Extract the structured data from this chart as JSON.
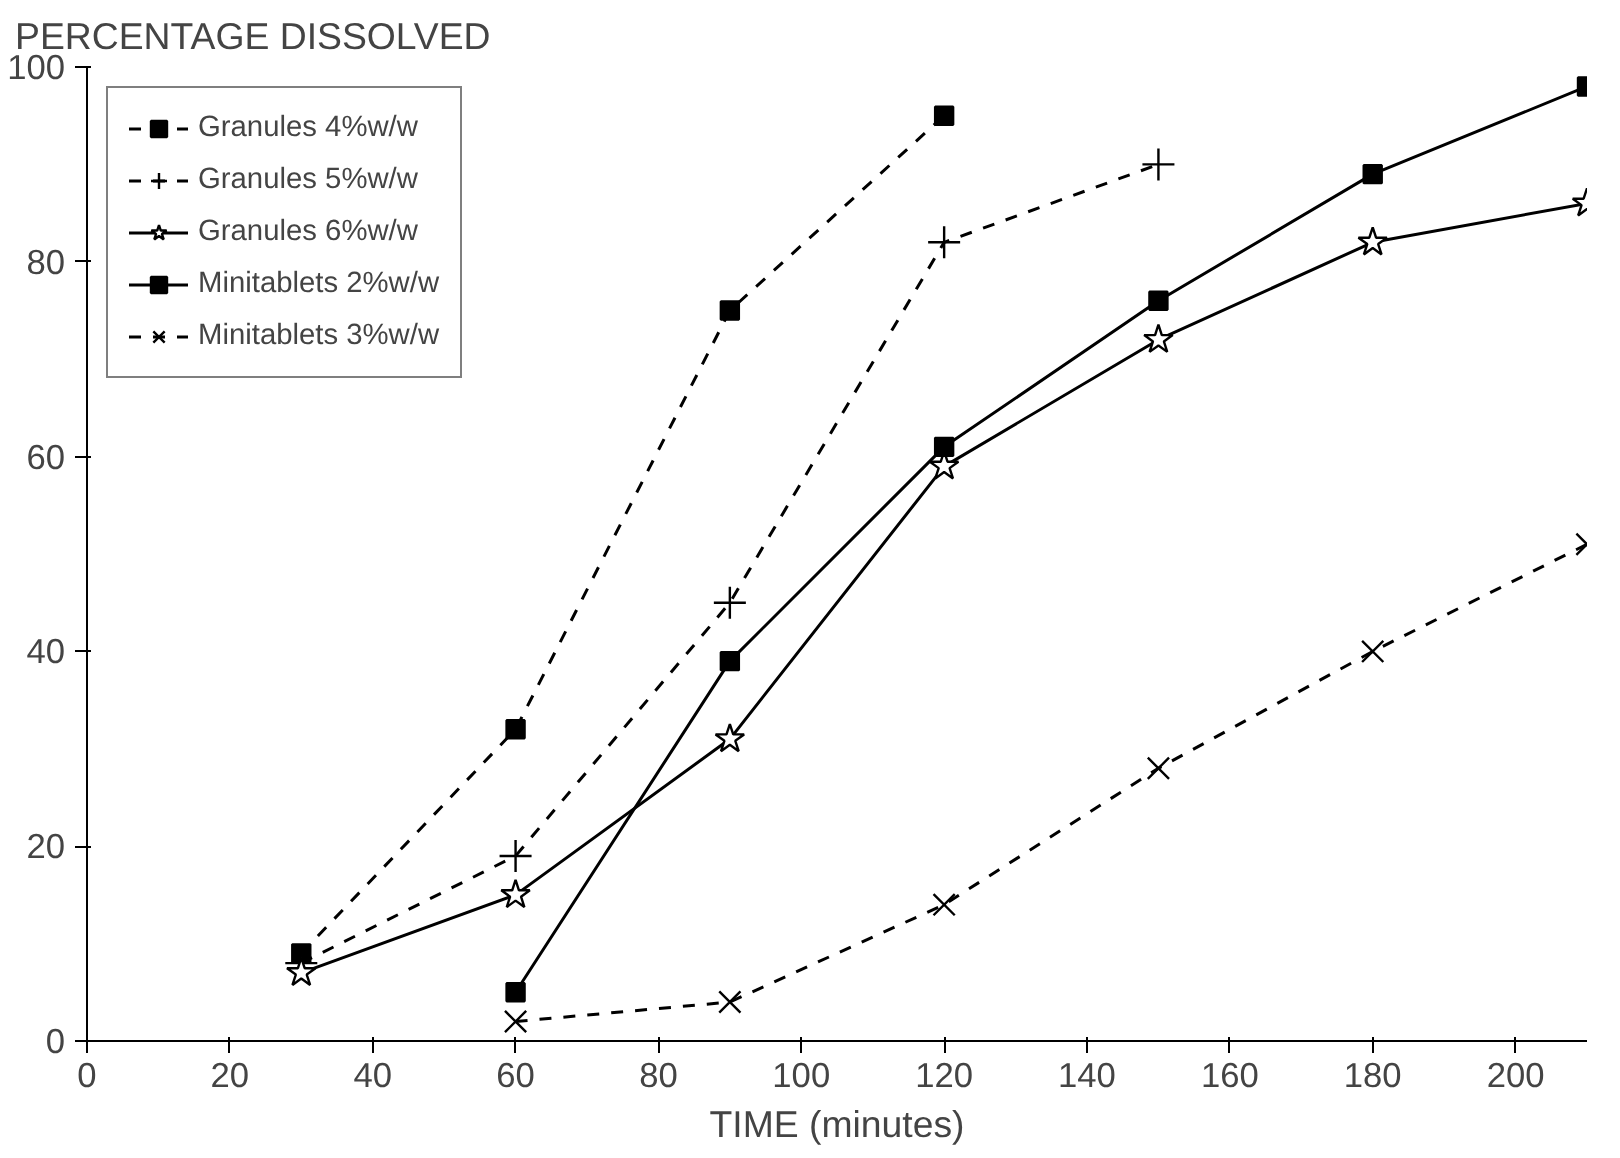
{
  "chart_data": {
    "type": "line",
    "ylabel": "PERCENTAGE DISSOLVED",
    "xlabel": "TIME (minutes)",
    "xlim": [
      0,
      210
    ],
    "xticks": [
      0,
      20,
      40,
      60,
      80,
      100,
      120,
      140,
      160,
      180,
      200
    ],
    "ylim": [
      0,
      100
    ],
    "yticks": [
      0,
      20,
      40,
      60,
      80,
      100
    ],
    "grid": false,
    "legend": "top left",
    "series": [
      {
        "name": "Granules 4%w/w",
        "color": "#000000",
        "line_style": "dashed",
        "marker": "square",
        "x": [
          30,
          60,
          90,
          120
        ],
        "values": [
          9,
          32,
          75,
          95
        ]
      },
      {
        "name": "Granules 5%w/w",
        "color": "#000000",
        "line_style": "dashed",
        "marker": "cross",
        "x": [
          30,
          60,
          90,
          120,
          150
        ],
        "values": [
          8,
          19,
          45,
          82,
          90
        ]
      },
      {
        "name": "Granules 6%w/w",
        "color": "#000000",
        "line_style": "solid",
        "marker": "star",
        "x": [
          30,
          60,
          90,
          120,
          150,
          180,
          210
        ],
        "values": [
          7,
          15,
          31,
          59,
          72,
          82,
          86
        ]
      },
      {
        "name": "Minitablets 2%w/w",
        "color": "#000000",
        "line_style": "solid",
        "marker": "square",
        "x": [
          60,
          90,
          120,
          150,
          180,
          210
        ],
        "values": [
          5,
          39,
          61,
          76,
          89,
          98
        ]
      },
      {
        "name": "Minitablets 3%w/w",
        "color": "#000000",
        "line_style": "dashed",
        "marker": "x",
        "x": [
          60,
          90,
          120,
          150,
          180,
          210
        ],
        "values": [
          2,
          4,
          14,
          28,
          40,
          51
        ]
      }
    ]
  }
}
